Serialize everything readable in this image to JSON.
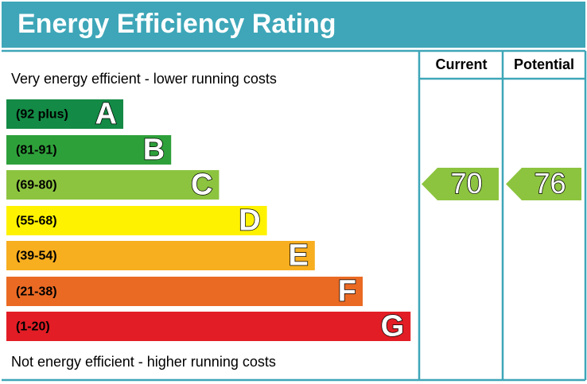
{
  "header": {
    "title": "Energy Efficiency Rating"
  },
  "columns": [
    "Current",
    "Potential"
  ],
  "top_note": "Very energy efficient - lower running costs",
  "bottom_note": "Not energy efficient - higher running costs",
  "bands": [
    {
      "range": "(92 plus)",
      "letter": "A",
      "color": "#138a45"
    },
    {
      "range": "(81-91)",
      "letter": "B",
      "color": "#2ea03a"
    },
    {
      "range": "(69-80)",
      "letter": "C",
      "color": "#8cc43f"
    },
    {
      "range": "(55-68)",
      "letter": "D",
      "color": "#fff200"
    },
    {
      "range": "(39-54)",
      "letter": "E",
      "color": "#f7ae1f"
    },
    {
      "range": "(21-38)",
      "letter": "F",
      "color": "#ea6a24"
    },
    {
      "range": "(1-20)",
      "letter": "G",
      "color": "#e21d25"
    }
  ],
  "ratings": [
    {
      "value": 70,
      "color": "#8cc43f"
    },
    {
      "value": 76,
      "color": "#8cc43f"
    }
  ]
}
